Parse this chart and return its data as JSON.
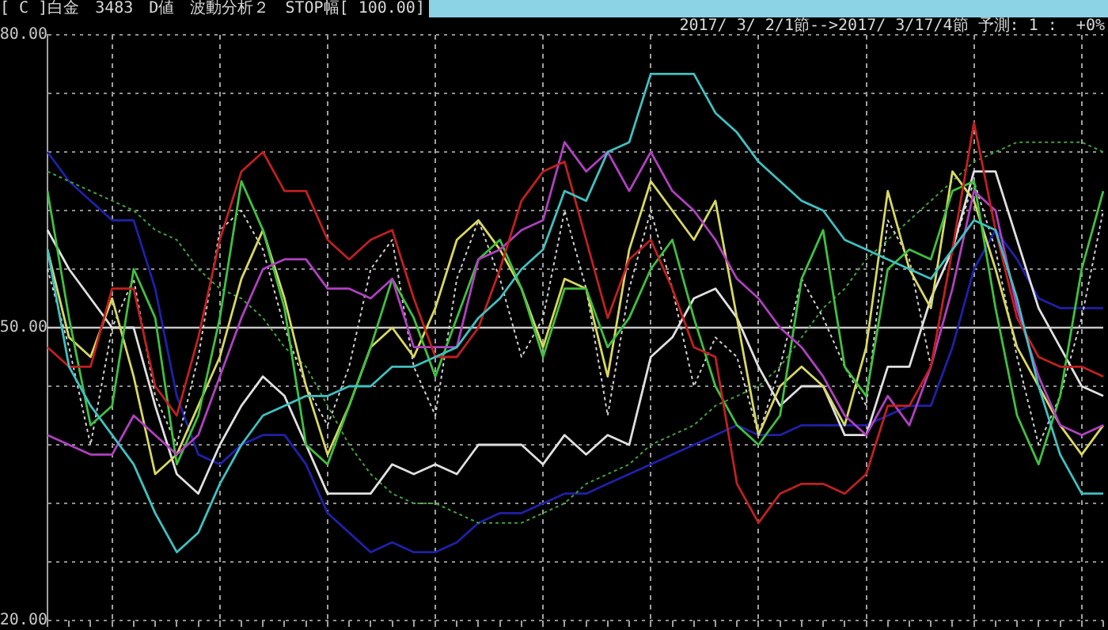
{
  "chart_data": {
    "type": "line",
    "title": "[ C ]白金　3483　D値　波動分析２　STOP幅[ 100.00]",
    "subtitle": "2017/ 3/ 2/1節-->2017/ 3/17/4節 予測: 1 :  +0%",
    "categories": [
      null,
      null,
      null,
      null,
      null,
      null,
      null,
      null,
      null,
      null,
      null,
      null,
      null,
      null,
      null,
      null,
      null,
      null,
      null,
      null,
      null,
      null,
      null,
      null,
      null,
      null,
      null,
      null,
      null,
      null,
      null,
      null,
      null,
      null,
      null,
      null,
      null,
      null,
      null,
      null,
      null,
      null,
      null,
      null,
      null,
      null,
      null,
      null,
      null,
      null
    ],
    "series": [
      {
        "color": "#40c0c0",
        "values": [
          58,
          46,
          42,
          39,
          36,
          31,
          27,
          29,
          34,
          38,
          41,
          42,
          43,
          43,
          44,
          44,
          46,
          46,
          47,
          48,
          51,
          53,
          56,
          58,
          64,
          63,
          68,
          69,
          76,
          76,
          76,
          72,
          70,
          67,
          65,
          63,
          62,
          59,
          58,
          57,
          56,
          55,
          58,
          61,
          60,
          53,
          44,
          37,
          33,
          33
        ]
      },
      {
        "color": "#c02020",
        "values": [
          48,
          46,
          46,
          54,
          54,
          44,
          41,
          49,
          59,
          66,
          68,
          64,
          64,
          59,
          57,
          59,
          60,
          53,
          47,
          47,
          50,
          56,
          63,
          66,
          67,
          59,
          51,
          57,
          59,
          54,
          48,
          47,
          34,
          30,
          33,
          34,
          34,
          33,
          35,
          42,
          42,
          46,
          58,
          71,
          60,
          51,
          47,
          46,
          46,
          45
        ]
      },
      {
        "color": "#b040c0",
        "values": [
          39,
          38,
          37,
          37,
          41,
          39,
          37,
          39,
          45,
          51,
          56,
          57,
          57,
          54,
          54,
          53,
          55,
          48,
          48,
          48,
          57,
          58,
          60,
          61,
          69,
          66,
          68,
          64,
          68,
          64,
          62,
          59,
          55,
          53,
          50,
          48,
          45,
          41,
          39,
          43,
          40,
          46,
          54,
          64,
          62,
          52,
          45,
          40,
          39,
          40
        ]
      },
      {
        "color": "#40c040",
        "values": [
          64,
          51,
          40,
          42,
          56,
          51,
          36,
          41,
          51,
          65,
          60,
          52,
          38,
          36,
          42,
          48,
          55,
          51,
          45,
          51,
          57,
          59,
          54,
          47,
          54,
          54,
          48,
          51,
          56,
          59,
          51,
          44,
          40,
          38,
          41,
          55,
          60,
          46,
          43,
          56,
          58,
          57,
          64,
          65,
          52,
          41,
          36,
          43,
          56,
          64
        ]
      },
      {
        "color": "#d8d860",
        "values": [
          58,
          49,
          47,
          53,
          45,
          35,
          37,
          42,
          47,
          55,
          60,
          53,
          44,
          37,
          42,
          48,
          50,
          47,
          52,
          59,
          61,
          58,
          54,
          48,
          55,
          54,
          45,
          58,
          65,
          62,
          59,
          63,
          51,
          39,
          44,
          46,
          44,
          40,
          48,
          64,
          56,
          52,
          66,
          63,
          56,
          48,
          44,
          40,
          37,
          40
        ]
      },
      {
        "color": "#e0e0e0",
        "values": [
          60,
          56,
          53,
          50,
          50,
          42,
          35,
          33,
          38,
          42,
          45,
          43,
          38,
          33,
          33,
          33,
          36,
          35,
          36,
          35,
          38,
          38,
          38,
          36,
          39,
          37,
          39,
          38,
          47,
          49,
          53,
          54,
          51,
          46,
          42,
          44,
          44,
          39,
          39,
          46,
          46,
          53,
          58,
          66,
          66,
          59,
          52,
          48,
          44,
          43
        ]
      },
      {
        "color": "#d0d0d0",
        "line_style": "dotted",
        "values": [
          56,
          48,
          38,
          50,
          55,
          43,
          38,
          47,
          60,
          62,
          58,
          50,
          44,
          40,
          46,
          56,
          59,
          46,
          41,
          55,
          61,
          55,
          47,
          51,
          62,
          54,
          41,
          54,
          62,
          54,
          44,
          49,
          47,
          39,
          46,
          55,
          51,
          46,
          42,
          61,
          57,
          46,
          58,
          65,
          58,
          47,
          38,
          43,
          51,
          62
        ]
      },
      {
        "color": "#40a040",
        "line_style": "dotted",
        "values": [
          66,
          65,
          64,
          63,
          62,
          60,
          59,
          56,
          54,
          53,
          51,
          48,
          46,
          42,
          38,
          35,
          33,
          32,
          32,
          31,
          30,
          30,
          30,
          31,
          32,
          34,
          35,
          36,
          38,
          39,
          40,
          42,
          43,
          44,
          46,
          49,
          52,
          54,
          57,
          59,
          61,
          63,
          65,
          67,
          68,
          69,
          69,
          69,
          69,
          68
        ]
      },
      {
        "color": "#2020a8",
        "values": [
          68,
          65,
          63,
          61,
          61,
          54,
          43,
          37,
          36,
          38,
          39,
          39,
          36,
          31,
          29,
          27,
          28,
          27,
          27,
          28,
          30,
          31,
          31,
          32,
          33,
          33,
          34,
          35,
          36,
          37,
          38,
          39,
          40,
          39,
          39,
          40,
          40,
          40,
          40,
          41,
          42,
          42,
          48,
          56,
          60,
          57,
          53,
          52,
          52,
          52
        ]
      }
    ],
    "ylim": [
      20,
      80
    ],
    "yticks": [
      {
        "value": 80,
        "label": "80.00"
      },
      {
        "value": 74,
        "label": null
      },
      {
        "value": 68,
        "label": null
      },
      {
        "value": 62,
        "label": null
      },
      {
        "value": 56,
        "label": null
      },
      {
        "value": 50,
        "label": "50.00"
      },
      {
        "value": 44,
        "label": null
      },
      {
        "value": 38,
        "label": null
      },
      {
        "value": 32,
        "label": null
      },
      {
        "value": 26,
        "label": null
      },
      {
        "value": 20,
        "label": "20.00"
      }
    ],
    "ref_lines": [
      {
        "axis": "y",
        "value": 50,
        "color": "#c8c8c8"
      }
    ],
    "grid": true,
    "legend": false,
    "tick_labels": "y"
  }
}
